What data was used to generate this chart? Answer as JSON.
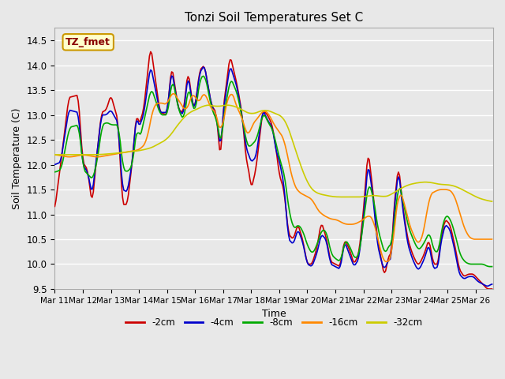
{
  "title": "Tonzi Soil Temperatures Set C",
  "xlabel": "Time",
  "ylabel": "Soil Temperature (C)",
  "ylim": [
    9.5,
    14.75
  ],
  "xlim": [
    0,
    375
  ],
  "background_color": "#e8e8e8",
  "plot_bg_color": "#e8e8e8",
  "grid_color": "white",
  "annotation_text": "TZ_fmet",
  "annotation_bg": "#ffffcc",
  "annotation_edge": "#cc9900",
  "annotation_text_color": "#880000",
  "series_colors": [
    "#cc0000",
    "#0000cc",
    "#00aa00",
    "#ff8800",
    "#cccc00"
  ],
  "series_labels": [
    "-2cm",
    "-4cm",
    "-8cm",
    "-16cm",
    "-32cm"
  ],
  "xtick_labels": [
    "Mar 11",
    "Mar 12",
    "Mar 13",
    "Mar 14",
    "Mar 15",
    "Mar 16",
    "Mar 17",
    "Mar 18",
    "Mar 19",
    "Mar 20",
    "Mar 21",
    "Mar 22",
    "Mar 23",
    "Mar 24",
    "Mar 25",
    "Mar 26"
  ],
  "xtick_positions": [
    0,
    24,
    48,
    72,
    96,
    120,
    144,
    168,
    192,
    216,
    240,
    264,
    288,
    312,
    336,
    360
  ],
  "linewidth": 1.2,
  "n_points": 375
}
